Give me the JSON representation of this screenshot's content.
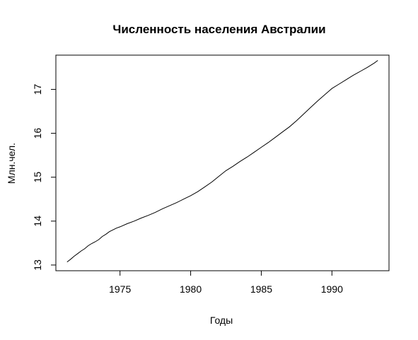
{
  "chart_data": {
    "type": "line",
    "title": "Численность населения Австралии",
    "xlabel": "Годы",
    "ylabel": "Млн.чел.",
    "xlim": [
      1970.46,
      1994.04
    ],
    "ylim": [
      12.87,
      17.78
    ],
    "x_ticks": [
      1975,
      1980,
      1985,
      1990
    ],
    "y_ticks": [
      13,
      14,
      15,
      16,
      17
    ],
    "grid": false,
    "legend": "none",
    "line_color": "#000000",
    "series": [
      {
        "x": [
          1971.25,
          1971.5,
          1971.75,
          1972.0,
          1972.25,
          1972.5,
          1972.75,
          1973.0,
          1973.25,
          1973.5,
          1973.75,
          1974.0,
          1974.25,
          1974.5,
          1974.75,
          1975.0,
          1975.5,
          1976.0,
          1976.5,
          1977.0,
          1977.5,
          1978.0,
          1978.5,
          1979.0,
          1979.5,
          1980.0,
          1980.5,
          1981.0,
          1981.5,
          1982.0,
          1982.5,
          1983.0,
          1983.5,
          1984.0,
          1984.5,
          1985.0,
          1985.5,
          1986.0,
          1986.5,
          1987.0,
          1987.5,
          1988.0,
          1988.5,
          1989.0,
          1989.5,
          1990.0,
          1990.5,
          1991.0,
          1991.5,
          1992.0,
          1992.5,
          1993.0,
          1993.25
        ],
        "values": [
          13.07,
          13.13,
          13.2,
          13.26,
          13.32,
          13.37,
          13.44,
          13.49,
          13.53,
          13.58,
          13.65,
          13.7,
          13.76,
          13.8,
          13.84,
          13.87,
          13.94,
          14.0,
          14.07,
          14.13,
          14.2,
          14.28,
          14.35,
          14.42,
          14.5,
          14.58,
          14.67,
          14.78,
          14.89,
          15.02,
          15.15,
          15.25,
          15.36,
          15.46,
          15.57,
          15.68,
          15.79,
          15.91,
          16.03,
          16.15,
          16.29,
          16.44,
          16.59,
          16.74,
          16.88,
          17.02,
          17.12,
          17.22,
          17.32,
          17.41,
          17.5,
          17.6,
          17.66
        ]
      }
    ]
  }
}
